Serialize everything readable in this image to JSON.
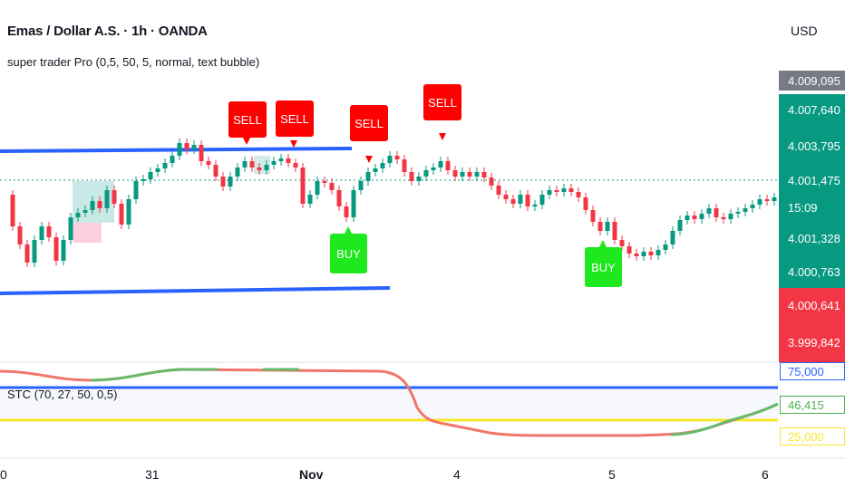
{
  "header": {
    "title": "Emas / Dollar A.S. · 1h · OANDA",
    "indicator": "super trader Pro (0,5, 50, 5, normal, text bubble)",
    "currency": "USD"
  },
  "price_axis": {
    "tags": [
      {
        "label": "4.009,095",
        "color": "gray"
      },
      {
        "label": "4.007,640",
        "color": "green"
      },
      {
        "label": "4.003,795",
        "color": "green"
      },
      {
        "label": "4.001,475",
        "color": "green"
      },
      {
        "label": "15:09",
        "color": "green"
      },
      {
        "label": "4.001,328",
        "color": "green"
      },
      {
        "label": "4.000,763",
        "color": "green"
      },
      {
        "label": "4.000,641",
        "color": "red"
      },
      {
        "label": "3.999,842",
        "color": "red"
      }
    ]
  },
  "signals": {
    "sell": [
      "SELL",
      "SELL",
      "SELL",
      "SELL"
    ],
    "buy": [
      "BUY",
      "BUY"
    ]
  },
  "stc": {
    "label": "STC (70, 27, 50, 0,5)",
    "values": [
      "75,000",
      "46,415",
      "25,000"
    ],
    "colors": {
      "upper": "#2962ff",
      "value": "#4caf50",
      "lower": "#f7e82c"
    }
  },
  "time_axis": [
    "0",
    "31",
    "Nov",
    "4",
    "5",
    "6"
  ],
  "colors": {
    "up": "#089981",
    "down": "#f23645",
    "trendline": "#2962ff",
    "sell_bubble": "#ff0000",
    "buy_bubble": "#1ee81e"
  }
}
